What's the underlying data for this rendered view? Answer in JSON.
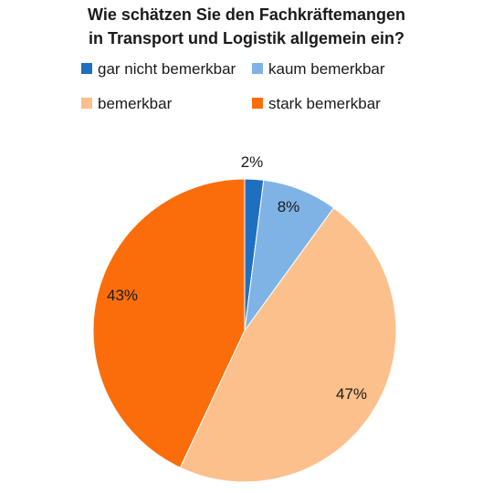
{
  "chart_data": {
    "type": "pie",
    "title_lines": [
      "Wie schätzen Sie den Fachkräftemangen",
      "in Transport und Logistik allgemein ein?"
    ],
    "categories": [
      "gar nicht bemerkbar",
      "kaum bemerkbar",
      "bemerkbar",
      "stark bemerkbar"
    ],
    "values": [
      2,
      8,
      47,
      43
    ],
    "value_labels": [
      "2%",
      "8%",
      "47%",
      "43%"
    ],
    "colors": [
      "#1f6fc1",
      "#7fb3e5",
      "#fcc08c",
      "#fb6d0a"
    ],
    "legend_position": "top"
  }
}
